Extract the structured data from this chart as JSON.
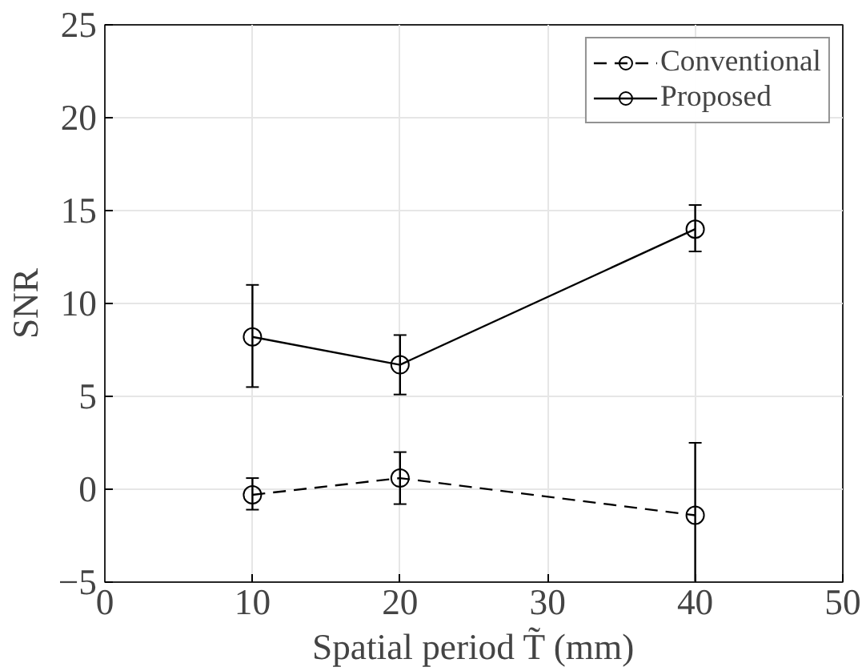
{
  "chart_data": {
    "type": "line",
    "xlabel": "Spatial period T̃ (mm)",
    "ylabel": "SNR",
    "x": [
      10,
      20,
      40
    ],
    "series": [
      {
        "name": "Conventional",
        "color": "#000000",
        "values": [
          -0.3,
          0.6,
          -1.4
        ],
        "errors": [
          [
            -1.1,
            0.6
          ],
          [
            -0.8,
            2.0
          ],
          [
            -5,
            2.5
          ]
        ],
        "line_style": "dashed"
      },
      {
        "name": "Proposed",
        "color": "#000000",
        "values": [
          8.2,
          6.7,
          14.0
        ],
        "errors": [
          [
            5.5,
            11.0
          ],
          [
            5.1,
            8.3
          ],
          [
            12.8,
            15.3
          ]
        ],
        "line_style": "solid"
      }
    ],
    "xlim": [
      0,
      50
    ],
    "ylim": [
      -5,
      25
    ],
    "xticks": [
      0,
      10,
      20,
      30,
      40,
      50
    ],
    "yticks": [
      -5,
      0,
      5,
      10,
      15,
      20,
      25
    ],
    "grid": true,
    "legend": "top right",
    "marker": "circle"
  }
}
